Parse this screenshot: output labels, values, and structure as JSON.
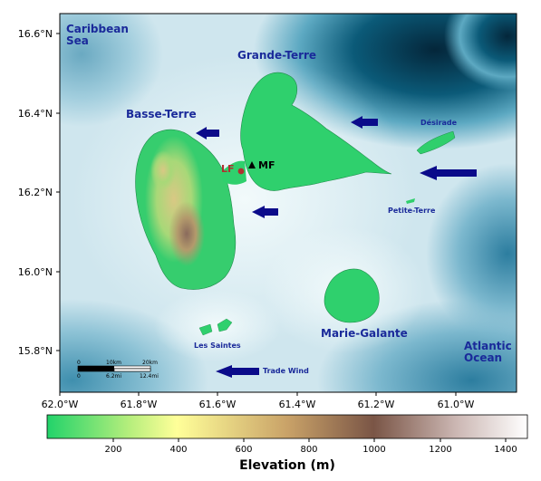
{
  "labels": {
    "caribbean_1": "Caribbean",
    "caribbean_2": "Sea",
    "grande_terre": "Grande-Terre",
    "basse_terre": "Basse-Terre",
    "desirade": "Désirade",
    "petite_terre": "Petite-Terre",
    "marie_galante": "Marie-Galante",
    "les_saintes": "Les Saintes",
    "atlantic_1": "Atlantic",
    "atlantic_2": "Ocean",
    "trade_wind": "Trade Wind"
  },
  "markers": {
    "lf": "LF",
    "mf": "MF",
    "lf_color": "#b03030",
    "mf_color": "#000000"
  },
  "y_ticks": [
    "16.6°N",
    "16.4°N",
    "16.2°N",
    "16.0°N",
    "15.8°N"
  ],
  "x_ticks": [
    "62.0°W",
    "61.8°W",
    "61.6°W",
    "61.4°W",
    "61.2°W",
    "61.0°W"
  ],
  "scalebar": {
    "km_labels": [
      "0",
      "10km",
      "20km"
    ],
    "mi_labels": [
      "0",
      "6.2mi",
      "12.4mi"
    ]
  },
  "colorbar": {
    "ticks": [
      "200",
      "400",
      "600",
      "800",
      "1000",
      "1200",
      "1400"
    ],
    "title": "Elevation (m)",
    "colors": [
      "#22d36a",
      "#b5ee7c",
      "#ffff99",
      "#c9a268",
      "#7a5546",
      "#cbb6b2",
      "#ffffff"
    ]
  },
  "colors": {
    "label_blue": "#1a2a9a",
    "arrow_navy": "#0b0b8a",
    "ocean_deep": "#06435f",
    "land_low": "#22d36a"
  }
}
